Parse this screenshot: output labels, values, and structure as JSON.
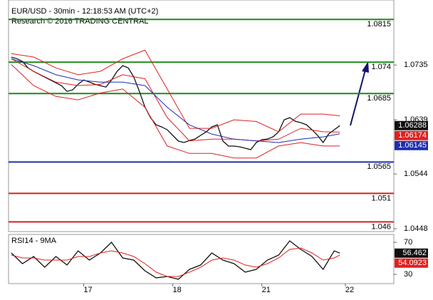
{
  "chart_data": [
    {
      "type": "line",
      "title": "EUR/USD - 30min - 12:18:53 AM (UTC+2)",
      "subtitle": "Research © 2016 TRADING CENTRAL",
      "xlim": [
        -0.5,
        68.7
      ],
      "ylim": [
        1.0443,
        1.0849
      ],
      "yticks": [
        1.0735,
        1.0639,
        1.0544,
        1.0448
      ],
      "levels": [
        {
          "value": 1.0815,
          "color": "#1a8a1a"
        },
        {
          "value": 1.074,
          "color": "#1a8a1a"
        },
        {
          "value": 1.0685,
          "color": "#1a8a1a"
        },
        {
          "value": 1.0565,
          "color": "#1c2fb0"
        },
        {
          "value": 1.051,
          "color": "#d42020"
        },
        {
          "value": 1.046,
          "color": "#d42020"
        }
      ],
      "series": [
        {
          "name": "EUR/USD",
          "color": "#111111",
          "value_box": true,
          "x": [
            0,
            1,
            2,
            3,
            4,
            5,
            6,
            7,
            8,
            9,
            10,
            11,
            12,
            13,
            14,
            15,
            16,
            17,
            18,
            19,
            20,
            21,
            22,
            23,
            24,
            25,
            26,
            27,
            28,
            29,
            30,
            31,
            32,
            33,
            34,
            35,
            36,
            37,
            38,
            39,
            40,
            41,
            42,
            43,
            44,
            45,
            46,
            47,
            48,
            49,
            50,
            51,
            52,
            53,
            54,
            55,
            56,
            57,
            58,
            59
          ],
          "values": [
            1.07487,
            1.07462,
            1.07412,
            1.073,
            1.07238,
            1.07188,
            1.07138,
            1.07088,
            1.07038,
            1.06988,
            1.06889,
            1.06914,
            1.07013,
            1.07088,
            1.07051,
            1.07013,
            1.06988,
            1.06963,
            1.07088,
            1.07238,
            1.07338,
            1.073,
            1.07138,
            1.06889,
            1.06614,
            1.06427,
            1.06303,
            1.06265,
            1.06215,
            1.06116,
            1.06016,
            1.05991,
            1.06028,
            1.06053,
            1.06116,
            1.06178,
            1.06265,
            1.06303,
            1.06016,
            1.05929,
            1.05929,
            1.05916,
            1.05891,
            1.05866,
            1.05991,
            1.06041,
            1.06053,
            1.06091,
            1.06178,
            1.0639,
            1.06427,
            1.06365,
            1.0634,
            1.06303,
            1.06215,
            1.06116,
            1.05991,
            1.06141,
            1.06215,
            1.06288
          ]
        },
        {
          "name": "Upper band",
          "color": "#e02020",
          "value_box": false,
          "x": [
            0,
            4,
            8,
            12,
            16,
            20,
            24,
            28,
            32,
            36,
            40,
            44,
            48,
            52,
            56,
            59
          ],
          "values": [
            1.0755,
            1.0749,
            1.073,
            1.0718,
            1.0724,
            1.0746,
            1.0761,
            1.0693,
            1.0624,
            1.0624,
            1.0639,
            1.0636,
            1.0618,
            1.0649,
            1.0649,
            1.0646
          ]
        },
        {
          "name": "Lower band",
          "color": "#e02020",
          "value_box": false,
          "x": [
            0,
            4,
            8,
            12,
            16,
            20,
            24,
            28,
            32,
            36,
            40,
            44,
            48,
            52,
            56,
            59
          ],
          "values": [
            1.0736,
            1.0699,
            1.068,
            1.0674,
            1.0686,
            1.0693,
            1.0661,
            1.0593,
            1.058,
            1.058,
            1.0572,
            1.0572,
            1.0593,
            1.0599,
            1.0593,
            1.0593
          ]
        },
        {
          "name": "Red MA",
          "color": "#e02020",
          "value_box": true,
          "x": [
            0,
            4,
            8,
            12,
            16,
            20,
            24,
            28,
            32,
            36,
            40,
            44,
            48,
            52,
            56,
            59
          ],
          "values": [
            1.0746,
            1.0724,
            1.0705,
            1.0699,
            1.0701,
            1.0718,
            1.0711,
            1.0643,
            1.0602,
            1.0605,
            1.0605,
            1.0602,
            1.0605,
            1.0624,
            1.0618,
            1.06174
          ]
        },
        {
          "name": "Blue MA",
          "color": "#1c2fb0",
          "value_box": true,
          "x": [
            0,
            4,
            8,
            12,
            16,
            20,
            24,
            28,
            32,
            36,
            40,
            44,
            48,
            52,
            56,
            59
          ],
          "values": [
            1.0746,
            1.0734,
            1.0718,
            1.0709,
            1.0705,
            1.0705,
            1.0699,
            1.0661,
            1.063,
            1.0614,
            1.0605,
            1.0602,
            1.0599,
            1.0605,
            1.0609,
            1.06145
          ]
        }
      ]
    },
    {
      "type": "line",
      "title": "RSI14 - 9MA",
      "xlim": [
        -0.5,
        68.7
      ],
      "ylim": [
        18.4,
        79.8
      ],
      "yticks": [
        70,
        30
      ],
      "xticks": [
        {
          "value": 13,
          "label": "17"
        },
        {
          "value": 29,
          "label": "18"
        },
        {
          "value": 45,
          "label": "21"
        },
        {
          "value": 60,
          "label": "22"
        }
      ],
      "series": [
        {
          "name": "RSI14",
          "color": "#111111",
          "value_box": true,
          "x": [
            0,
            2,
            4,
            6,
            8,
            10,
            12,
            14,
            16,
            18,
            20,
            22,
            24,
            26,
            28,
            30,
            32,
            34,
            36,
            38,
            40,
            42,
            44,
            46,
            48,
            50,
            52,
            54,
            56,
            58,
            59
          ],
          "values": [
            56.7,
            43.3,
            52.2,
            38.9,
            52.2,
            41.6,
            59.3,
            47.8,
            56.7,
            70,
            50.4,
            47.8,
            34.4,
            25.6,
            27.3,
            23.8,
            36.2,
            41.6,
            56.7,
            47.8,
            43.3,
            32.7,
            36.2,
            47.8,
            54,
            71.8,
            61.1,
            52.2,
            36.2,
            59.3,
            56.462
          ]
        },
        {
          "name": "9MA",
          "color": "#e02020",
          "value_box": true,
          "x": [
            0,
            2,
            4,
            6,
            8,
            10,
            12,
            14,
            16,
            18,
            20,
            22,
            24,
            26,
            28,
            30,
            32,
            34,
            36,
            38,
            40,
            42,
            44,
            46,
            48,
            50,
            52,
            54,
            56,
            58,
            59
          ],
          "values": [
            54,
            50.4,
            50.4,
            47.8,
            47.8,
            47.8,
            52.2,
            52.2,
            56.7,
            59.3,
            56.7,
            52.2,
            43.3,
            32.7,
            27.3,
            27.3,
            32.7,
            38.9,
            47.8,
            50.4,
            47.8,
            41.6,
            38.9,
            43.3,
            50.4,
            61.1,
            62.9,
            56.7,
            47.8,
            50.4,
            54.0923
          ]
        }
      ]
    }
  ]
}
